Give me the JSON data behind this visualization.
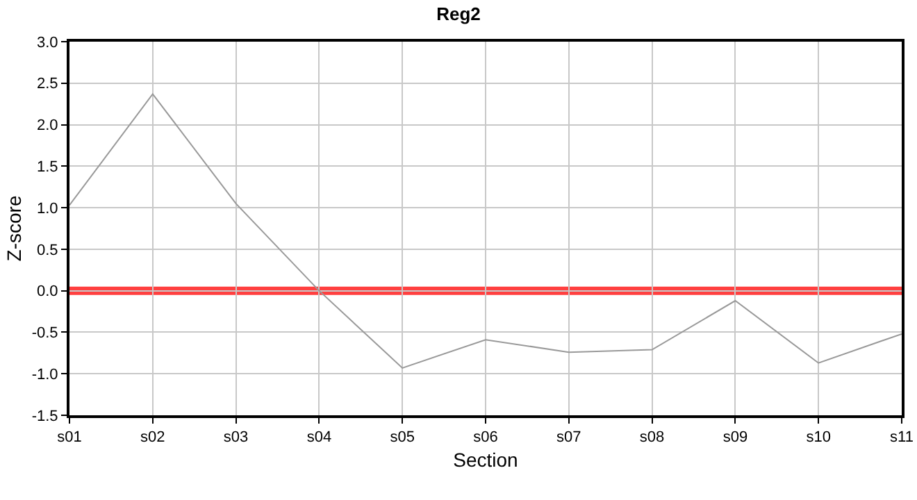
{
  "chart_data": {
    "type": "line",
    "title": "Reg2",
    "xlabel": "Section",
    "ylabel": "Z-score",
    "categories": [
      "s01",
      "s02",
      "s03",
      "s04",
      "s05",
      "s06",
      "s07",
      "s08",
      "s09",
      "s10",
      "s11"
    ],
    "series": [
      {
        "color": "#999999",
        "values": [
          1.03,
          2.37,
          1.05,
          0.0,
          -0.93,
          -0.59,
          -0.74,
          -0.71,
          -0.12,
          -0.87,
          -0.52
        ]
      }
    ],
    "ylim": [
      -1.5,
      3.0
    ],
    "yticks": [
      {
        "value": -1.5,
        "label": "-1.5"
      },
      {
        "value": -1,
        "label": "-1.0"
      },
      {
        "value": -0.5,
        "label": "-0.5"
      },
      {
        "value": 0,
        "label": "0.0"
      },
      {
        "value": 0.5,
        "label": "0.5"
      },
      {
        "value": 1,
        "label": "1.0"
      },
      {
        "value": 1.5,
        "label": "1.5"
      },
      {
        "value": 2,
        "label": "2.0"
      },
      {
        "value": 2.5,
        "label": "2.5"
      },
      {
        "value": 3,
        "label": "3.0"
      }
    ],
    "ref_lines": [
      {
        "axis": "y",
        "value": 0,
        "color": "#ff4040"
      }
    ],
    "grid": true,
    "marker": "none",
    "line_style": "solid"
  }
}
